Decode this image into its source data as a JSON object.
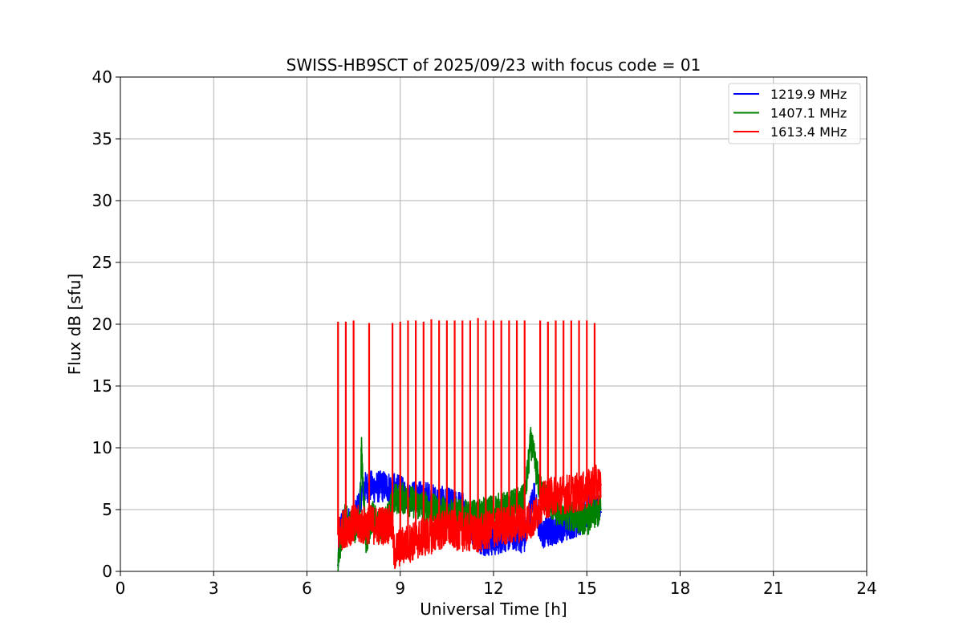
{
  "chart_data": {
    "type": "line",
    "title": "SWISS-HB9SCT of 2025/09/23 with focus code = 01",
    "xlabel": "Universal Time [h]",
    "ylabel": "Flux dB [sfu]",
    "xlim": [
      0,
      24
    ],
    "ylim": [
      0,
      40
    ],
    "xticks": [
      0,
      3,
      6,
      9,
      12,
      15,
      18,
      21,
      24
    ],
    "yticks": [
      0,
      5,
      10,
      15,
      20,
      25,
      30,
      35,
      40
    ],
    "grid": true,
    "legend_position": "top-right",
    "series": [
      {
        "name": "1219.9 MHz",
        "color": "#0000ff",
        "x": [
          7.0,
          7.05,
          7.2,
          7.5,
          7.8,
          8.0,
          8.2,
          8.5,
          8.8,
          9.2,
          9.5,
          9.8,
          10.0,
          10.5,
          11.0,
          11.3,
          11.6,
          12.0,
          12.3,
          12.6,
          13.0,
          13.3,
          13.5,
          13.8,
          14.0,
          14.3,
          14.6,
          14.9,
          15.2,
          15.45
        ],
        "y": [
          0.5,
          3.5,
          4.0,
          3.8,
          6.7,
          6.9,
          6.8,
          6.9,
          6.7,
          6.2,
          6.0,
          6.1,
          5.8,
          5.5,
          5.2,
          3.5,
          2.6,
          2.5,
          2.8,
          3.0,
          2.7,
          6.3,
          3.0,
          3.2,
          3.5,
          3.7,
          4.0,
          4.3,
          5.5,
          4.8
        ]
      },
      {
        "name": "1407.1 MHz",
        "color": "#008000",
        "x": [
          7.0,
          7.05,
          7.2,
          7.5,
          7.7,
          7.75,
          7.9,
          8.1,
          8.3,
          8.5,
          8.8,
          9.0,
          9.5,
          10.0,
          10.5,
          11.0,
          11.5,
          12.0,
          12.5,
          13.0,
          13.2,
          13.5,
          14.0,
          14.5,
          15.0,
          15.45
        ],
        "y": [
          0.5,
          2.0,
          4.2,
          3.5,
          4.0,
          9.8,
          2.5,
          4.5,
          3.5,
          3.8,
          5.8,
          6.0,
          5.5,
          5.0,
          4.8,
          4.5,
          4.5,
          5.0,
          5.2,
          5.8,
          10.5,
          6.5,
          5.0,
          4.5,
          4.2,
          5.0
        ]
      },
      {
        "name": "1613.4 MHz",
        "color": "#ff0000",
        "x": [
          7.0,
          7.2,
          7.5,
          7.8,
          8.0,
          8.3,
          8.6,
          8.75,
          8.8,
          9.0,
          9.5,
          10.0,
          10.5,
          11.0,
          11.5,
          12.0,
          12.5,
          13.0,
          13.3,
          13.5,
          13.8,
          14.0,
          14.5,
          15.0,
          15.2,
          15.45
        ],
        "y": [
          3.0,
          3.5,
          3.8,
          3.7,
          3.8,
          3.7,
          3.8,
          3.7,
          1.5,
          2.0,
          2.5,
          3.0,
          3.5,
          3.2,
          3.0,
          3.5,
          3.8,
          4.0,
          4.2,
          5.5,
          6.0,
          6.2,
          6.3,
          6.5,
          7.0,
          7.0
        ]
      }
    ],
    "spikes": {
      "series": "1613.4 MHz",
      "x": [
        7.0,
        7.25,
        7.5,
        8.0,
        8.75,
        9.0,
        9.25,
        9.5,
        9.75,
        10.0,
        10.25,
        10.5,
        10.75,
        11.0,
        11.25,
        11.5,
        11.75,
        12.0,
        12.25,
        12.5,
        12.75,
        13.0,
        13.5,
        13.75,
        14.0,
        14.25,
        14.5,
        14.75,
        15.0,
        15.25
      ],
      "y": [
        20.2,
        20.2,
        20.3,
        20.1,
        20.1,
        20.2,
        20.3,
        20.3,
        20.2,
        20.4,
        20.3,
        20.3,
        20.3,
        20.3,
        20.3,
        20.5,
        20.3,
        20.3,
        20.3,
        20.3,
        20.3,
        20.3,
        20.3,
        20.2,
        20.3,
        20.3,
        20.3,
        20.3,
        20.3,
        20.1
      ]
    }
  }
}
